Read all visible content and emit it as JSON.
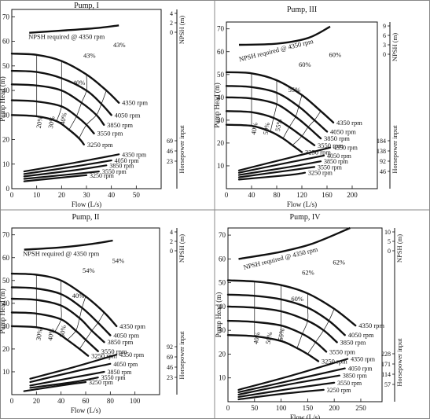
{
  "figure": {
    "divider_color": "#888888",
    "ink_color": "#111111"
  },
  "chart_data": [
    {
      "type": "line",
      "title": "Pump, I",
      "xlabel": "Flow (L/s)",
      "ylabel": "Pump Head (m)",
      "npsh_label": "NPSH (m)",
      "hp_label": "Horsepower input",
      "xlim": [
        0,
        60
      ],
      "ylim": [
        0,
        73
      ],
      "x_ticks": [
        "0",
        "10",
        "20",
        "30",
        "40",
        "50"
      ],
      "y_ticks": [
        "0",
        "10",
        "20",
        "30",
        "40",
        "50",
        "60",
        "70"
      ],
      "npsh_ticks": [
        "4",
        "2",
        "0"
      ],
      "hp_ticks": [
        "69",
        "46",
        "23"
      ],
      "npsh_curve": {
        "label": "NPSH required @ 4350 rpm",
        "points": [
          [
            7,
            63.5
          ],
          [
            22,
            64.5
          ],
          [
            35,
            65.5
          ],
          [
            43,
            66.5
          ]
        ]
      },
      "head_curves": [
        {
          "name": "4350 rpm",
          "points": [
            [
              0,
              55
            ],
            [
              10,
              54.5
            ],
            [
              20,
              52
            ],
            [
              30,
              46.5
            ],
            [
              38,
              40
            ],
            [
              43,
              35
            ]
          ]
        },
        {
          "name": "4050 rpm",
          "points": [
            [
              0,
              48
            ],
            [
              10,
              47.5
            ],
            [
              20,
              45
            ],
            [
              30,
              40
            ],
            [
              36,
              34.5
            ],
            [
              40,
              30
            ]
          ]
        },
        {
          "name": "3850 rpm",
          "points": [
            [
              0,
              42.5
            ],
            [
              10,
              42
            ],
            [
              20,
              40
            ],
            [
              28,
              35
            ],
            [
              34,
              30
            ],
            [
              37,
              26
            ]
          ]
        },
        {
          "name": "3550 rpm",
          "points": [
            [
              0,
              36
            ],
            [
              10,
              35.5
            ],
            [
              20,
              33.5
            ],
            [
              26,
              29.5
            ],
            [
              30,
              26
            ],
            [
              33,
              22.5
            ]
          ]
        },
        {
          "name": "3250 rpm",
          "points": [
            [
              0,
              30
            ],
            [
              10,
              29.5
            ],
            [
              18,
              27.5
            ],
            [
              23,
              24
            ],
            [
              27,
              20.5
            ],
            [
              29,
              18
            ]
          ]
        }
      ],
      "efficiency_labels": [
        "20%",
        "30%",
        "40%",
        "40%",
        "43%",
        "43%"
      ],
      "hp_curves": [
        {
          "name": "4350 rpm",
          "points": [
            [
              5,
              7
            ],
            [
              25,
              10.5
            ],
            [
              43,
              14
            ]
          ]
        },
        {
          "name": "4050 rpm",
          "points": [
            [
              5,
              6
            ],
            [
              25,
              9
            ],
            [
              40,
              11.5
            ]
          ]
        },
        {
          "name": "3850 rpm",
          "points": [
            [
              5,
              5
            ],
            [
              25,
              7.5
            ],
            [
              38,
              9.5
            ]
          ]
        },
        {
          "name": "3550 rpm",
          "points": [
            [
              5,
              4
            ],
            [
              25,
              6
            ],
            [
              35,
              7
            ]
          ]
        },
        {
          "name": "3250 rpm",
          "points": [
            [
              5,
              3
            ],
            [
              20,
              4.5
            ],
            [
              30,
              5.5
            ]
          ]
        }
      ]
    },
    {
      "type": "line",
      "title": "Pump, III",
      "xlabel": "Flow (L/s)",
      "ylabel": "Pump Head (m)",
      "npsh_label": "NPSH (m)",
      "hp_label": "Horsepower input",
      "xlim": [
        0,
        240
      ],
      "ylim": [
        0,
        73
      ],
      "x_ticks": [
        "0",
        "40",
        "80",
        "120",
        "160",
        "200"
      ],
      "y_ticks": [
        "10",
        "20",
        "30",
        "40",
        "50",
        "60",
        "70"
      ],
      "npsh_ticks": [
        "9",
        "6",
        "3",
        "0"
      ],
      "hp_ticks": [
        "184",
        "138",
        "92",
        "46"
      ],
      "npsh_curve": {
        "label": "NPSH required @ 4350 rpm",
        "points": [
          [
            20,
            63
          ],
          [
            80,
            63.5
          ],
          [
            130,
            66
          ],
          [
            165,
            71
          ]
        ]
      },
      "head_curves": [
        {
          "name": "4350 rpm",
          "points": [
            [
              0,
              51
            ],
            [
              40,
              50.5
            ],
            [
              80,
              47.5
            ],
            [
              120,
              41
            ],
            [
              150,
              34
            ],
            [
              170,
              29
            ]
          ]
        },
        {
          "name": "4050 rpm",
          "points": [
            [
              0,
              45
            ],
            [
              40,
              44.5
            ],
            [
              80,
              42
            ],
            [
              115,
              36
            ],
            [
              140,
              30
            ],
            [
              160,
              25
            ]
          ]
        },
        {
          "name": "3850 rpm",
          "points": [
            [
              0,
              40
            ],
            [
              40,
              39.5
            ],
            [
              80,
              37
            ],
            [
              110,
              31.5
            ],
            [
              130,
              27
            ],
            [
              150,
              22
            ]
          ]
        },
        {
          "name": "3550 rpm",
          "points": [
            [
              0,
              34
            ],
            [
              40,
              33.5
            ],
            [
              75,
              31
            ],
            [
              100,
              27
            ],
            [
              120,
              23
            ],
            [
              140,
              19
            ]
          ]
        },
        {
          "name": "3250 rpm",
          "points": [
            [
              0,
              28
            ],
            [
              40,
              27.5
            ],
            [
              70,
              25
            ],
            [
              90,
              22
            ],
            [
              105,
              19
            ],
            [
              120,
              16
            ]
          ]
        }
      ],
      "efficiency_labels": [
        "40%",
        "50%",
        "55%",
        "55%",
        "60%",
        "60%"
      ],
      "hp_curves": [
        {
          "name": "4350 rpm",
          "points": [
            [
              20,
              8
            ],
            [
              100,
              13.5
            ],
            [
              165,
              18
            ]
          ]
        },
        {
          "name": "4050 rpm",
          "points": [
            [
              20,
              7
            ],
            [
              100,
              11.5
            ],
            [
              155,
              14.5
            ]
          ]
        },
        {
          "name": "3850 rpm",
          "points": [
            [
              20,
              6
            ],
            [
              100,
              9.5
            ],
            [
              150,
              12
            ]
          ]
        },
        {
          "name": "3550 rpm",
          "points": [
            [
              20,
              5
            ],
            [
              100,
              8
            ],
            [
              140,
              9.5
            ]
          ]
        },
        {
          "name": "3250 rpm",
          "points": [
            [
              20,
              4
            ],
            [
              100,
              6
            ],
            [
              125,
              7
            ]
          ]
        }
      ]
    },
    {
      "type": "line",
      "title": "Pump, II",
      "xlabel": "Flow (L/s)",
      "ylabel": "Pump Head (m)",
      "npsh_label": "NPSH (m)",
      "hp_label": "Horsepower input",
      "xlim": [
        0,
        120
      ],
      "ylim": [
        0,
        73
      ],
      "x_ticks": [
        "0",
        "20",
        "40",
        "60",
        "80",
        "100"
      ],
      "y_ticks": [
        "10",
        "20",
        "30",
        "40",
        "50",
        "60",
        "70"
      ],
      "npsh_ticks": [
        "4",
        "2",
        "0"
      ],
      "hp_ticks": [
        "92",
        "69",
        "46",
        "23"
      ],
      "npsh_curve": {
        "label": "NPSH required @ 4350 rpm",
        "points": [
          [
            10,
            63.5
          ],
          [
            40,
            64.5
          ],
          [
            65,
            66
          ],
          [
            82,
            67.5
          ]
        ]
      },
      "head_curves": [
        {
          "name": "4350 rpm",
          "points": [
            [
              0,
              53
            ],
            [
              20,
              52.5
            ],
            [
              40,
              50
            ],
            [
              60,
              43
            ],
            [
              75,
              36
            ],
            [
              85,
              30
            ]
          ]
        },
        {
          "name": "4050 rpm",
          "points": [
            [
              0,
              47
            ],
            [
              20,
              46.5
            ],
            [
              40,
              44
            ],
            [
              57,
              38
            ],
            [
              70,
              31.5
            ],
            [
              80,
              26
            ]
          ]
        },
        {
          "name": "3850 rpm",
          "points": [
            [
              0,
              42
            ],
            [
              20,
              41.5
            ],
            [
              40,
              39
            ],
            [
              55,
              33.5
            ],
            [
              65,
              28
            ],
            [
              75,
              23
            ]
          ]
        },
        {
          "name": "3550 rpm",
          "points": [
            [
              0,
              36
            ],
            [
              20,
              35.5
            ],
            [
              40,
              33
            ],
            [
              52,
              28
            ],
            [
              60,
              24
            ],
            [
              70,
              19
            ]
          ]
        },
        {
          "name": "3250 rpm",
          "points": [
            [
              0,
              30
            ],
            [
              20,
              29.5
            ],
            [
              35,
              27.5
            ],
            [
              45,
              24
            ],
            [
              55,
              20
            ],
            [
              62,
              17
            ]
          ]
        }
      ],
      "efficiency_labels": [
        "30%",
        "40%",
        "50%",
        "40%",
        "54%",
        "54%"
      ],
      "hp_curves": [
        {
          "name": "4350 rpm",
          "points": [
            [
              15,
              7
            ],
            [
              50,
              12
            ],
            [
              85,
              17.5
            ]
          ]
        },
        {
          "name": "4050 rpm",
          "points": [
            [
              15,
              5.5
            ],
            [
              50,
              10
            ],
            [
              80,
              13.5
            ]
          ]
        },
        {
          "name": "3850 rpm",
          "points": [
            [
              15,
              4
            ],
            [
              50,
              7.5
            ],
            [
              75,
              10
            ]
          ]
        },
        {
          "name": "3550 rpm",
          "points": [
            [
              15,
              3
            ],
            [
              50,
              5.5
            ],
            [
              70,
              7.5
            ]
          ]
        },
        {
          "name": "3250 rpm",
          "points": [
            [
              10,
              1.5
            ],
            [
              40,
              4
            ],
            [
              60,
              5.5
            ]
          ]
        }
      ]
    },
    {
      "type": "line",
      "title": "Pump, IV",
      "xlabel": "Flow (L/s)",
      "ylabel": "Pump Head (m)",
      "npsh_label": "NPSH (m)",
      "hp_label": "Horsepower input",
      "xlim": [
        0,
        290
      ],
      "ylim": [
        0,
        73
      ],
      "x_ticks": [
        "0",
        "50",
        "100",
        "150",
        "200",
        "250"
      ],
      "y_ticks": [
        "10",
        "20",
        "30",
        "40",
        "50",
        "60",
        "70"
      ],
      "npsh_ticks": [
        "10",
        "5",
        "0"
      ],
      "hp_ticks": [
        "228",
        "171",
        "114",
        "57"
      ],
      "npsh_curve": {
        "label": "NPSH required @ 4350 rpm",
        "points": [
          [
            20,
            60
          ],
          [
            100,
            63
          ],
          [
            160,
            66.5
          ],
          [
            230,
            73
          ]
        ]
      },
      "head_curves": [
        {
          "name": "4350 rpm",
          "points": [
            [
              0,
              51
            ],
            [
              50,
              50.5
            ],
            [
              100,
              49
            ],
            [
              150,
              45.5
            ],
            [
              200,
              39
            ],
            [
              240,
              32
            ]
          ]
        },
        {
          "name": "4050 rpm",
          "points": [
            [
              0,
              45
            ],
            [
              50,
              44.5
            ],
            [
              100,
              43
            ],
            [
              150,
              39.5
            ],
            [
              190,
              34
            ],
            [
              220,
              28
            ]
          ]
        },
        {
          "name": "3850 rpm",
          "points": [
            [
              0,
              40
            ],
            [
              50,
              39.5
            ],
            [
              100,
              38
            ],
            [
              150,
              34
            ],
            [
              180,
              30
            ],
            [
              205,
              25
            ]
          ]
        },
        {
          "name": "3550 rpm",
          "points": [
            [
              0,
              34
            ],
            [
              50,
              33.5
            ],
            [
              100,
              32
            ],
            [
              140,
              28.5
            ],
            [
              165,
              25
            ],
            [
              185,
              21
            ]
          ]
        },
        {
          "name": "3250 rpm",
          "points": [
            [
              0,
              28
            ],
            [
              50,
              27.5
            ],
            [
              100,
              25.5
            ],
            [
              130,
              22.5
            ],
            [
              150,
              20
            ],
            [
              170,
              17
            ]
          ]
        }
      ],
      "efficiency_labels": [
        "40%",
        "50%",
        "55%",
        "60%",
        "62%",
        "62%"
      ],
      "hp_curves": [
        {
          "name": "4350 rpm",
          "points": [
            [
              20,
              5
            ],
            [
              120,
              11
            ],
            [
              225,
              18
            ]
          ]
        },
        {
          "name": "4050 rpm",
          "points": [
            [
              20,
              4
            ],
            [
              120,
              9
            ],
            [
              220,
              14
            ]
          ]
        },
        {
          "name": "3850 rpm",
          "points": [
            [
              20,
              3
            ],
            [
              120,
              7.5
            ],
            [
              210,
              11
            ]
          ]
        },
        {
          "name": "3550 rpm",
          "points": [
            [
              20,
              2
            ],
            [
              120,
              5.5
            ],
            [
              200,
              8
            ]
          ]
        },
        {
          "name": "3250 rpm",
          "points": [
            [
              20,
              1
            ],
            [
              110,
              3.5
            ],
            [
              180,
              5
            ]
          ]
        }
      ]
    }
  ]
}
